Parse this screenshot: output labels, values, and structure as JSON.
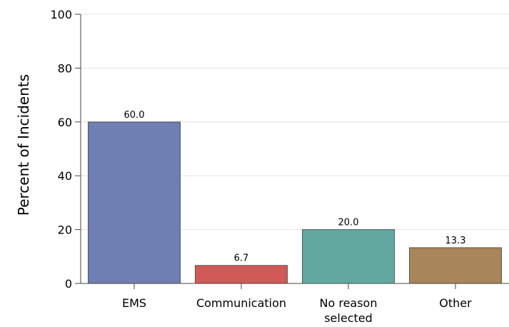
{
  "chart_data": {
    "type": "bar",
    "title": "",
    "xlabel": "",
    "ylabel": "Percent of Incidents",
    "ylim": [
      0,
      100
    ],
    "yticks": [
      0,
      20,
      40,
      60,
      80,
      100
    ],
    "grid": true,
    "legend": "none",
    "categories": [
      "EMS",
      "Communication",
      "No reason selected",
      "Other"
    ],
    "category_label_lines": [
      [
        "EMS"
      ],
      [
        "Communication"
      ],
      [
        "No reason",
        "selected"
      ],
      [
        "Other"
      ]
    ],
    "values": [
      60.0,
      6.7,
      20.0,
      13.3
    ],
    "value_labels": [
      "60.0",
      "6.7",
      "20.0",
      "13.3"
    ],
    "colors": [
      "#6f7fb3",
      "#d05a58",
      "#62a8a0",
      "#a8855a"
    ]
  }
}
